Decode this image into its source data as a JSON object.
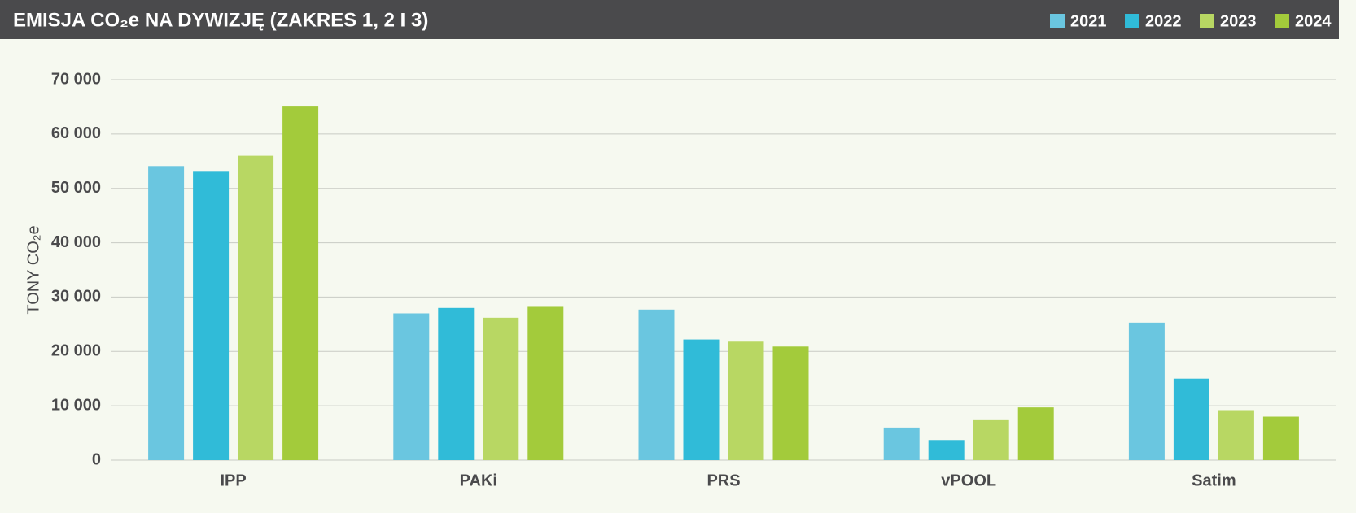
{
  "chart_data": {
    "type": "bar",
    "title": "EMISJA CO₂e NA DYWIZJĘ (ZAKRES 1, 2 I 3)",
    "y_label": "TONY CO₂e",
    "categories": [
      "IPP",
      "PAKi",
      "PRS",
      "vPOOL",
      "Satim"
    ],
    "series": [
      {
        "name": "2021",
        "color": "#6ac6e0",
        "values": [
          54100,
          27000,
          27700,
          6000,
          25300
        ]
      },
      {
        "name": "2022",
        "color": "#30bbd8",
        "values": [
          53200,
          28000,
          22200,
          3700,
          15000
        ]
      },
      {
        "name": "2023",
        "color": "#b8d763",
        "values": [
          56000,
          26200,
          21800,
          7500,
          9200
        ]
      },
      {
        "name": "2024",
        "color": "#a3cb3b",
        "values": [
          65200,
          28200,
          20900,
          9700,
          8000
        ]
      }
    ],
    "ylim": [
      0,
      70000
    ],
    "yticks": [
      0,
      {
        "value": 10000,
        "label": "10 000"
      },
      {
        "value": 20000,
        "label": "20 000"
      },
      {
        "value": 30000,
        "label": "30 000"
      },
      {
        "value": 40000,
        "label": "40 000"
      },
      {
        "value": 50000,
        "label": "50 000"
      },
      {
        "value": 60000,
        "label": "60 000"
      },
      {
        "value": 70000,
        "label": "70 000"
      }
    ],
    "grid": true,
    "legend": "top-right"
  }
}
